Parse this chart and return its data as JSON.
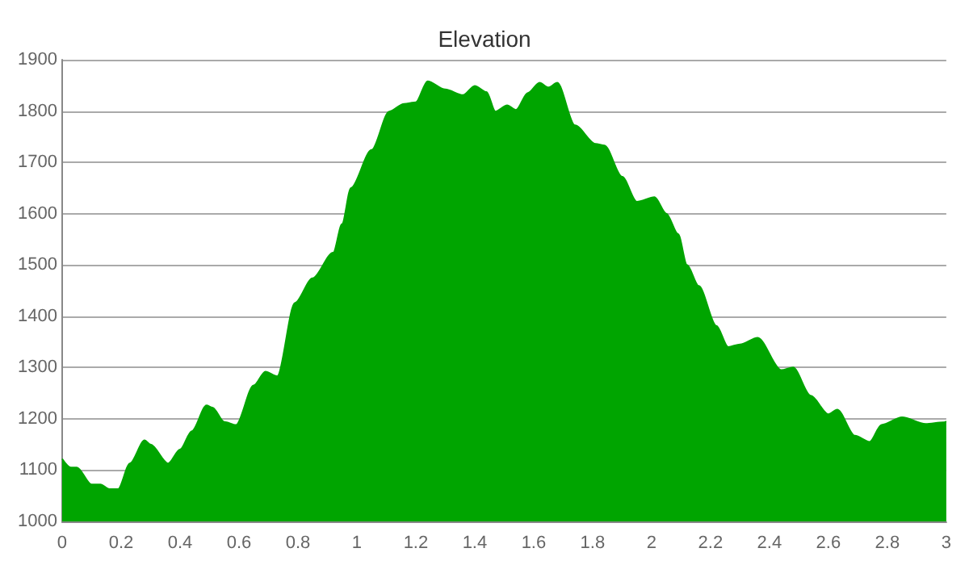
{
  "chart_data": {
    "type": "area",
    "title": "Elevation",
    "x": [
      0,
      0.03,
      0.05,
      0.1,
      0.13,
      0.16,
      0.19,
      0.23,
      0.28,
      0.3,
      0.36,
      0.4,
      0.44,
      0.49,
      0.51,
      0.55,
      0.59,
      0.65,
      0.69,
      0.73,
      0.79,
      0.85,
      0.92,
      0.95,
      0.98,
      1.05,
      1.11,
      1.16,
      1.2,
      1.24,
      1.3,
      1.36,
      1.4,
      1.44,
      1.47,
      1.51,
      1.54,
      1.58,
      1.62,
      1.65,
      1.68,
      1.74,
      1.81,
      1.84,
      1.9,
      1.95,
      2.01,
      2.05,
      2.09,
      2.12,
      2.16,
      2.22,
      2.26,
      2.3,
      2.36,
      2.44,
      2.48,
      2.54,
      2.6,
      2.63,
      2.69,
      2.74,
      2.78,
      2.85,
      2.93,
      2.99,
      3
    ],
    "series": [
      {
        "color": "#00a500",
        "values": [
          1122,
          1105,
          1105,
          1072,
          1072,
          1063,
          1063,
          1113,
          1158,
          1150,
          1113,
          1140,
          1176,
          1226,
          1222,
          1194,
          1188,
          1265,
          1292,
          1283,
          1426,
          1474,
          1524,
          1580,
          1650,
          1724,
          1799,
          1814,
          1817,
          1858,
          1842,
          1831,
          1849,
          1837,
          1799,
          1811,
          1802,
          1835,
          1855,
          1846,
          1855,
          1772,
          1736,
          1733,
          1672,
          1623,
          1632,
          1600,
          1560,
          1500,
          1459,
          1381,
          1340,
          1345,
          1358,
          1295,
          1300,
          1245,
          1209,
          1218,
          1167,
          1155,
          1188,
          1203,
          1190,
          1193,
          1195
        ]
      }
    ],
    "xlim": [
      0,
      3
    ],
    "xticks": [
      0,
      0.2,
      0.4,
      0.6,
      0.8,
      1,
      1.2,
      1.4,
      1.6,
      1.8,
      2,
      2.2,
      2.4,
      2.6,
      2.8,
      3
    ],
    "ylim": [
      1000,
      1900
    ],
    "yticks": [
      1000,
      1100,
      1200,
      1300,
      1400,
      1500,
      1600,
      1700,
      1800,
      1900
    ],
    "grid": "y"
  }
}
